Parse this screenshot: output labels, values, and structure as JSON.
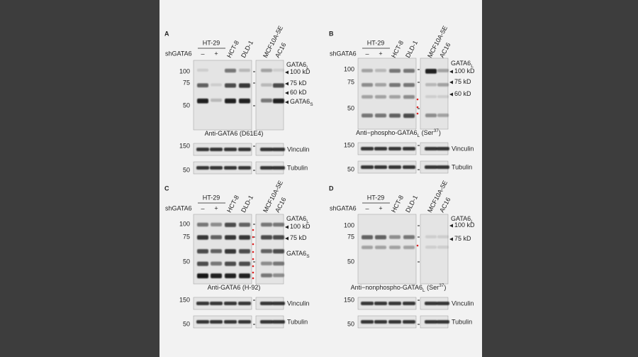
{
  "panels": [
    {
      "letter": "A",
      "group": "HT-29",
      "condition_label": "shGATA6",
      "treatment": [
        "–",
        "+"
      ],
      "lines": [
        "HCT-8",
        "DLD-1",
        "MCF10A-5E",
        "AC16"
      ],
      "markers": [
        "100",
        "75",
        "50"
      ],
      "annotations": [
        [
          {
            "text": "GATA6"
          },
          {
            "text": "L",
            "sub": true
          }
        ],
        [
          {
            "text": "100 kD"
          }
        ],
        [
          {
            "text": "75 kD"
          }
        ],
        [
          {
            "text": "60 kD"
          }
        ],
        [
          {
            "text": "GATA6"
          },
          {
            "text": "S",
            "sub": true
          }
        ]
      ],
      "caption": [
        {
          "text": "Anti-GATA6 (D61E4)"
        }
      ],
      "loading": [
        {
          "marker": "150",
          "label": "Vinculin"
        },
        {
          "marker": "50",
          "label": "Tubulin"
        }
      ]
    },
    {
      "letter": "B",
      "group": "HT-29",
      "condition_label": "shGATA6",
      "treatment": [
        "–",
        "+"
      ],
      "lines": [
        "HCT-8",
        "DLD-1",
        "MCF10A-5E",
        "AC16"
      ],
      "markers": [
        "100",
        "75",
        "50"
      ],
      "annotations": [
        [
          {
            "text": "GATA6"
          },
          {
            "text": "L",
            "sub": true
          }
        ],
        [
          {
            "text": "100 kD"
          }
        ],
        [
          {
            "text": "75 kD"
          }
        ],
        [
          {
            "text": "60 kD"
          }
        ]
      ],
      "caption": [
        {
          "text": "Anti−phospho-GATA6"
        },
        {
          "text": "L",
          "sub": true
        },
        {
          "text": " (Ser"
        },
        {
          "text": "37",
          "sup": true
        },
        {
          "text": ")"
        }
      ],
      "loading": [
        {
          "marker": "150",
          "label": "Vinculin"
        },
        {
          "marker": "50",
          "label": "Tubulin"
        }
      ]
    },
    {
      "letter": "C",
      "group": "HT-29",
      "condition_label": "shGATA6",
      "treatment": [
        "–",
        "+"
      ],
      "lines": [
        "HCT-8",
        "DLD-1",
        "MCF10A-5E",
        "AC16"
      ],
      "markers": [
        "100",
        "75",
        "50"
      ],
      "annotations": [
        [
          {
            "text": "GATA6"
          },
          {
            "text": "L",
            "sub": true
          }
        ],
        [
          {
            "text": "100 kD"
          }
        ],
        [
          {
            "text": "75 kD"
          }
        ],
        [
          {
            "text": "GATA6"
          },
          {
            "text": "S",
            "sub": true
          }
        ]
      ],
      "caption": [
        {
          "text": "Anti-GATA6 (H-92)"
        }
      ],
      "loading": [
        {
          "marker": "150",
          "label": "Vinculin"
        },
        {
          "marker": "50",
          "label": "Tubulin"
        }
      ]
    },
    {
      "letter": "D",
      "group": "HT-29",
      "condition_label": "shGATA6",
      "treatment": [
        "–",
        "+"
      ],
      "lines": [
        "HCT-8",
        "DLD-1",
        "MCF10A-5E",
        "AC16"
      ],
      "markers": [
        "100",
        "75",
        "50"
      ],
      "annotations": [
        [
          {
            "text": "GATA6"
          },
          {
            "text": "L",
            "sub": true
          }
        ],
        [
          {
            "text": "100 kD"
          }
        ],
        [
          {
            "text": "75 kD"
          }
        ]
      ],
      "caption": [
        {
          "text": "Anti−nonphospho-GATA6"
        },
        {
          "text": "L",
          "sub": true
        },
        {
          "text": " (Ser"
        },
        {
          "text": "37",
          "sup": true
        },
        {
          "text": ")"
        }
      ],
      "loading": [
        {
          "marker": "150",
          "label": "Vinculin"
        },
        {
          "marker": "50",
          "label": "Tubulin"
        }
      ]
    }
  ]
}
